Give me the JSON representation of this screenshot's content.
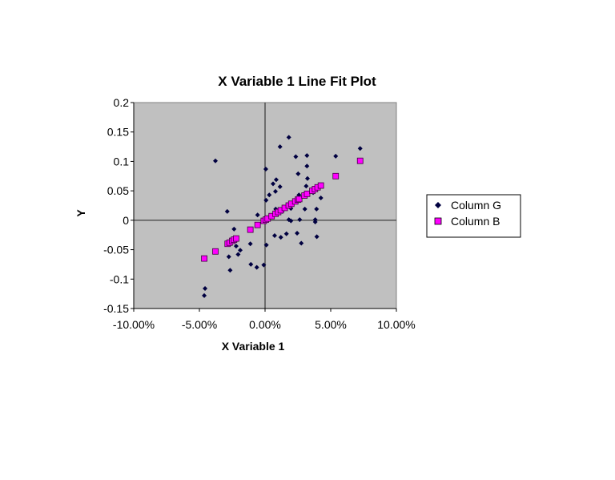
{
  "chart_data": {
    "type": "scatter",
    "title": "X Variable 1 Line Fit  Plot",
    "xlabel": "X Variable 1",
    "ylabel": "Y",
    "xlim": [
      -10,
      10
    ],
    "ylim": [
      -0.15,
      0.2
    ],
    "x_unit": "%",
    "x_ticks": [
      "-10.00%",
      "-5.00%",
      "0.00%",
      "5.00%",
      "10.00%"
    ],
    "x_tick_values": [
      -10,
      -5,
      0,
      5,
      10
    ],
    "y_ticks": [
      "0.2",
      "0.15",
      "0.1",
      "0.05",
      "0",
      "-0.05",
      "-0.1",
      "-0.15"
    ],
    "y_tick_values": [
      0.2,
      0.15,
      0.1,
      0.05,
      0,
      -0.05,
      -0.1,
      -0.15
    ],
    "grid": false,
    "plot_background": "#c0c0c0",
    "legend_position": "right",
    "series": [
      {
        "name": "Column G",
        "marker": "diamond",
        "color": "#000040",
        "points": [
          [
            -3.78,
            0.101
          ],
          [
            1.81,
            0.141
          ],
          [
            1.14,
            0.125
          ],
          [
            7.24,
            0.122
          ],
          [
            5.38,
            0.109
          ],
          [
            2.34,
            0.108
          ],
          [
            3.19,
            0.11
          ],
          [
            3.19,
            0.092
          ],
          [
            0.06,
            0.087
          ],
          [
            2.52,
            0.079
          ],
          [
            3.23,
            0.071
          ],
          [
            0.85,
            0.069
          ],
          [
            0.61,
            0.062
          ],
          [
            1.14,
            0.057
          ],
          [
            3.13,
            0.058
          ],
          [
            0.79,
            0.049
          ],
          [
            0.32,
            0.043
          ],
          [
            0.08,
            0.034
          ],
          [
            4.25,
            0.038
          ],
          [
            2.58,
            0.043
          ],
          [
            3.66,
            0.047
          ],
          [
            -2.88,
            0.015
          ],
          [
            -0.57,
            0.009
          ],
          [
            0.81,
            0.019
          ],
          [
            1.97,
            0.02
          ],
          [
            3.03,
            0.019
          ],
          [
            3.92,
            0.019
          ],
          [
            1.81,
            0.001
          ],
          [
            1.97,
            -0.001
          ],
          [
            2.64,
            0.001
          ],
          [
            3.82,
            0.001
          ],
          [
            3.82,
            -0.003
          ],
          [
            -2.36,
            -0.015
          ],
          [
            0.73,
            -0.026
          ],
          [
            1.2,
            -0.029
          ],
          [
            1.63,
            -0.023
          ],
          [
            2.44,
            -0.022
          ],
          [
            3.94,
            -0.028
          ],
          [
            2.76,
            -0.039
          ],
          [
            0.1,
            -0.042
          ],
          [
            -1.12,
            -0.04
          ],
          [
            -2.2,
            -0.044
          ],
          [
            -1.89,
            -0.051
          ],
          [
            -2.05,
            -0.058
          ],
          [
            -2.76,
            -0.062
          ],
          [
            -2.66,
            -0.085
          ],
          [
            -1.08,
            -0.075
          ],
          [
            -0.63,
            -0.08
          ],
          [
            -0.1,
            -0.076
          ],
          [
            -4.57,
            -0.116
          ],
          [
            -4.63,
            -0.128
          ],
          [
            -2.85,
            -0.041
          ],
          [
            1.3,
            0.015
          ],
          [
            2.1,
            0.028
          ]
        ]
      },
      {
        "name": "Column B",
        "marker": "square",
        "color": "#ff00ff",
        "points": [
          [
            -4.63,
            -0.065
          ],
          [
            -3.78,
            -0.053
          ],
          [
            -2.85,
            -0.04
          ],
          [
            -2.7,
            -0.038
          ],
          [
            -2.5,
            -0.035
          ],
          [
            -2.36,
            -0.033
          ],
          [
            -2.2,
            -0.031
          ],
          [
            -1.12,
            -0.016
          ],
          [
            -0.57,
            -0.008
          ],
          [
            -0.1,
            -0.001
          ],
          [
            0.06,
            0.001
          ],
          [
            0.2,
            0.003
          ],
          [
            0.5,
            0.007
          ],
          [
            0.8,
            0.011
          ],
          [
            1.0,
            0.014
          ],
          [
            1.2,
            0.017
          ],
          [
            1.5,
            0.021
          ],
          [
            1.8,
            0.025
          ],
          [
            2.0,
            0.028
          ],
          [
            2.3,
            0.032
          ],
          [
            2.5,
            0.035
          ],
          [
            2.6,
            0.036
          ],
          [
            3.0,
            0.042
          ],
          [
            3.2,
            0.045
          ],
          [
            3.6,
            0.05
          ],
          [
            3.8,
            0.053
          ],
          [
            4.0,
            0.056
          ],
          [
            4.25,
            0.059
          ],
          [
            5.38,
            0.075
          ],
          [
            7.24,
            0.101
          ]
        ]
      }
    ]
  }
}
